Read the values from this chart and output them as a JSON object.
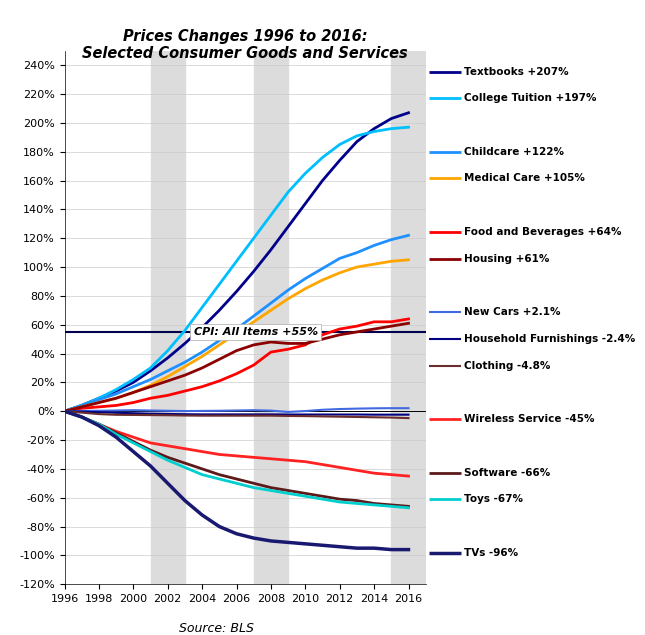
{
  "title": "Prices Changes 1996 to 2016:\nSelected Consumer Goods and Services",
  "source": "Source: BLS",
  "cpi_label": "CPI: All Items +55%",
  "xlim": [
    1996,
    2017
  ],
  "ylim": [
    -1.2,
    2.5
  ],
  "yticks": [
    -1.2,
    -1.0,
    -0.8,
    -0.6,
    -0.4,
    -0.2,
    0.0,
    0.2,
    0.4,
    0.6,
    0.8,
    1.0,
    1.2,
    1.4,
    1.6,
    1.8,
    2.0,
    2.2,
    2.4
  ],
  "ytick_labels": [
    "-120%",
    "-100%",
    "-80%",
    "-60%",
    "-40%",
    "-20%",
    "0%",
    "20%",
    "40%",
    "60%",
    "80%",
    "100%",
    "120%",
    "140%",
    "160%",
    "180%",
    "200%",
    "220%",
    "240%"
  ],
  "series": [
    {
      "name": "Textbooks +207%",
      "color": "#00008B",
      "lw": 2.0,
      "points": [
        [
          1996,
          0
        ],
        [
          1997,
          0.04
        ],
        [
          1998,
          0.09
        ],
        [
          1999,
          0.14
        ],
        [
          2000,
          0.2
        ],
        [
          2001,
          0.28
        ],
        [
          2002,
          0.37
        ],
        [
          2003,
          0.47
        ],
        [
          2004,
          0.58
        ],
        [
          2005,
          0.7
        ],
        [
          2006,
          0.83
        ],
        [
          2007,
          0.97
        ],
        [
          2008,
          1.12
        ],
        [
          2009,
          1.28
        ],
        [
          2010,
          1.44
        ],
        [
          2011,
          1.6
        ],
        [
          2012,
          1.74
        ],
        [
          2013,
          1.87
        ],
        [
          2014,
          1.96
        ],
        [
          2015,
          2.03
        ],
        [
          2016,
          2.07
        ]
      ]
    },
    {
      "name": "College Tuition +197%",
      "color": "#00BFFF",
      "lw": 2.0,
      "points": [
        [
          1996,
          0
        ],
        [
          1997,
          0.04
        ],
        [
          1998,
          0.09
        ],
        [
          1999,
          0.15
        ],
        [
          2000,
          0.22
        ],
        [
          2001,
          0.3
        ],
        [
          2002,
          0.42
        ],
        [
          2003,
          0.56
        ],
        [
          2004,
          0.72
        ],
        [
          2005,
          0.88
        ],
        [
          2006,
          1.04
        ],
        [
          2007,
          1.2
        ],
        [
          2008,
          1.36
        ],
        [
          2009,
          1.52
        ],
        [
          2010,
          1.65
        ],
        [
          2011,
          1.76
        ],
        [
          2012,
          1.85
        ],
        [
          2013,
          1.91
        ],
        [
          2014,
          1.94
        ],
        [
          2015,
          1.96
        ],
        [
          2016,
          1.97
        ]
      ]
    },
    {
      "name": "Childcare +122%",
      "color": "#1E90FF",
      "lw": 2.0,
      "points": [
        [
          1996,
          0
        ],
        [
          1997,
          0.04
        ],
        [
          1998,
          0.08
        ],
        [
          1999,
          0.12
        ],
        [
          2000,
          0.17
        ],
        [
          2001,
          0.22
        ],
        [
          2002,
          0.28
        ],
        [
          2003,
          0.34
        ],
        [
          2004,
          0.41
        ],
        [
          2005,
          0.49
        ],
        [
          2006,
          0.57
        ],
        [
          2007,
          0.66
        ],
        [
          2008,
          0.75
        ],
        [
          2009,
          0.84
        ],
        [
          2010,
          0.92
        ],
        [
          2011,
          0.99
        ],
        [
          2012,
          1.06
        ],
        [
          2013,
          1.1
        ],
        [
          2014,
          1.15
        ],
        [
          2015,
          1.19
        ],
        [
          2016,
          1.22
        ]
      ]
    },
    {
      "name": "Medical Care +105%",
      "color": "#FFA500",
      "lw": 2.0,
      "points": [
        [
          1996,
          0
        ],
        [
          1997,
          0.03
        ],
        [
          1998,
          0.06
        ],
        [
          1999,
          0.09
        ],
        [
          2000,
          0.13
        ],
        [
          2001,
          0.18
        ],
        [
          2002,
          0.24
        ],
        [
          2003,
          0.31
        ],
        [
          2004,
          0.38
        ],
        [
          2005,
          0.46
        ],
        [
          2006,
          0.54
        ],
        [
          2007,
          0.62
        ],
        [
          2008,
          0.7
        ],
        [
          2009,
          0.78
        ],
        [
          2010,
          0.85
        ],
        [
          2011,
          0.91
        ],
        [
          2012,
          0.96
        ],
        [
          2013,
          1.0
        ],
        [
          2014,
          1.02
        ],
        [
          2015,
          1.04
        ],
        [
          2016,
          1.05
        ]
      ]
    },
    {
      "name": "Food and Beverages +64%",
      "color": "#FF0000",
      "lw": 2.0,
      "points": [
        [
          1996,
          0
        ],
        [
          1997,
          0.02
        ],
        [
          1998,
          0.03
        ],
        [
          1999,
          0.04
        ],
        [
          2000,
          0.06
        ],
        [
          2001,
          0.09
        ],
        [
          2002,
          0.11
        ],
        [
          2003,
          0.14
        ],
        [
          2004,
          0.17
        ],
        [
          2005,
          0.21
        ],
        [
          2006,
          0.26
        ],
        [
          2007,
          0.32
        ],
        [
          2008,
          0.41
        ],
        [
          2009,
          0.43
        ],
        [
          2010,
          0.46
        ],
        [
          2011,
          0.53
        ],
        [
          2012,
          0.57
        ],
        [
          2013,
          0.59
        ],
        [
          2014,
          0.62
        ],
        [
          2015,
          0.62
        ],
        [
          2016,
          0.64
        ]
      ]
    },
    {
      "name": "Housing +61%",
      "color": "#8B0000",
      "lw": 2.0,
      "points": [
        [
          1996,
          0
        ],
        [
          1997,
          0.03
        ],
        [
          1998,
          0.06
        ],
        [
          1999,
          0.09
        ],
        [
          2000,
          0.13
        ],
        [
          2001,
          0.17
        ],
        [
          2002,
          0.21
        ],
        [
          2003,
          0.25
        ],
        [
          2004,
          0.3
        ],
        [
          2005,
          0.36
        ],
        [
          2006,
          0.42
        ],
        [
          2007,
          0.46
        ],
        [
          2008,
          0.48
        ],
        [
          2009,
          0.47
        ],
        [
          2010,
          0.47
        ],
        [
          2011,
          0.5
        ],
        [
          2012,
          0.53
        ],
        [
          2013,
          0.55
        ],
        [
          2014,
          0.57
        ],
        [
          2015,
          0.59
        ],
        [
          2016,
          0.61
        ]
      ]
    },
    {
      "name": "New Cars +2.1%",
      "color": "#4169E1",
      "lw": 1.5,
      "points": [
        [
          1996,
          0
        ],
        [
          1997,
          0.002
        ],
        [
          1998,
          0.003
        ],
        [
          1999,
          0.005
        ],
        [
          2000,
          0.007
        ],
        [
          2001,
          0.005
        ],
        [
          2002,
          0.003
        ],
        [
          2003,
          0.001
        ],
        [
          2004,
          0.002
        ],
        [
          2005,
          0.003
        ],
        [
          2006,
          0.005
        ],
        [
          2007,
          0.007
        ],
        [
          2008,
          0.004
        ],
        [
          2009,
          -0.005
        ],
        [
          2010,
          0.001
        ],
        [
          2011,
          0.01
        ],
        [
          2012,
          0.015
        ],
        [
          2013,
          0.018
        ],
        [
          2014,
          0.02
        ],
        [
          2015,
          0.021
        ],
        [
          2016,
          0.021
        ]
      ]
    },
    {
      "name": "Household Furnishings -2.4%",
      "color": "#000080",
      "lw": 1.5,
      "points": [
        [
          1996,
          0
        ],
        [
          1997,
          -0.003
        ],
        [
          1998,
          -0.007
        ],
        [
          1999,
          -0.011
        ],
        [
          2000,
          -0.014
        ],
        [
          2001,
          -0.017
        ],
        [
          2002,
          -0.019
        ],
        [
          2003,
          -0.021
        ],
        [
          2004,
          -0.022
        ],
        [
          2005,
          -0.022
        ],
        [
          2006,
          -0.022
        ],
        [
          2007,
          -0.022
        ],
        [
          2008,
          -0.022
        ],
        [
          2009,
          -0.023
        ],
        [
          2010,
          -0.023
        ],
        [
          2011,
          -0.023
        ],
        [
          2012,
          -0.023
        ],
        [
          2013,
          -0.023
        ],
        [
          2014,
          -0.024
        ],
        [
          2015,
          -0.024
        ],
        [
          2016,
          -0.024
        ]
      ]
    },
    {
      "name": "Clothing -4.8%",
      "color": "#6B2D2D",
      "lw": 1.5,
      "points": [
        [
          1996,
          0
        ],
        [
          1997,
          -0.01
        ],
        [
          1998,
          -0.02
        ],
        [
          1999,
          -0.025
        ],
        [
          2000,
          -0.026
        ],
        [
          2001,
          -0.027
        ],
        [
          2002,
          -0.028
        ],
        [
          2003,
          -0.03
        ],
        [
          2004,
          -0.031
        ],
        [
          2005,
          -0.031
        ],
        [
          2006,
          -0.031
        ],
        [
          2007,
          -0.031
        ],
        [
          2008,
          -0.031
        ],
        [
          2009,
          -0.033
        ],
        [
          2010,
          -0.034
        ],
        [
          2011,
          -0.036
        ],
        [
          2012,
          -0.038
        ],
        [
          2013,
          -0.04
        ],
        [
          2014,
          -0.042
        ],
        [
          2015,
          -0.044
        ],
        [
          2016,
          -0.048
        ]
      ]
    },
    {
      "name": "Wireless Service -45%",
      "color": "#FF2222",
      "lw": 2.0,
      "points": [
        [
          1996,
          0
        ],
        [
          1997,
          -0.04
        ],
        [
          1998,
          -0.09
        ],
        [
          1999,
          -0.14
        ],
        [
          2000,
          -0.18
        ],
        [
          2001,
          -0.22
        ],
        [
          2002,
          -0.24
        ],
        [
          2003,
          -0.26
        ],
        [
          2004,
          -0.28
        ],
        [
          2005,
          -0.3
        ],
        [
          2006,
          -0.31
        ],
        [
          2007,
          -0.32
        ],
        [
          2008,
          -0.33
        ],
        [
          2009,
          -0.34
        ],
        [
          2010,
          -0.35
        ],
        [
          2011,
          -0.37
        ],
        [
          2012,
          -0.39
        ],
        [
          2013,
          -0.41
        ],
        [
          2014,
          -0.43
        ],
        [
          2015,
          -0.44
        ],
        [
          2016,
          -0.45
        ]
      ]
    },
    {
      "name": "Software -66%",
      "color": "#5C1A1A",
      "lw": 2.0,
      "points": [
        [
          1996,
          0
        ],
        [
          1997,
          -0.04
        ],
        [
          1998,
          -0.09
        ],
        [
          1999,
          -0.15
        ],
        [
          2000,
          -0.21
        ],
        [
          2001,
          -0.27
        ],
        [
          2002,
          -0.32
        ],
        [
          2003,
          -0.36
        ],
        [
          2004,
          -0.4
        ],
        [
          2005,
          -0.44
        ],
        [
          2006,
          -0.47
        ],
        [
          2007,
          -0.5
        ],
        [
          2008,
          -0.53
        ],
        [
          2009,
          -0.55
        ],
        [
          2010,
          -0.57
        ],
        [
          2011,
          -0.59
        ],
        [
          2012,
          -0.61
        ],
        [
          2013,
          -0.62
        ],
        [
          2014,
          -0.64
        ],
        [
          2015,
          -0.65
        ],
        [
          2016,
          -0.66
        ]
      ]
    },
    {
      "name": "Toys -67%",
      "color": "#00CFCF",
      "lw": 2.0,
      "points": [
        [
          1996,
          0
        ],
        [
          1997,
          -0.04
        ],
        [
          1998,
          -0.09
        ],
        [
          1999,
          -0.16
        ],
        [
          2000,
          -0.22
        ],
        [
          2001,
          -0.28
        ],
        [
          2002,
          -0.34
        ],
        [
          2003,
          -0.39
        ],
        [
          2004,
          -0.44
        ],
        [
          2005,
          -0.47
        ],
        [
          2006,
          -0.5
        ],
        [
          2007,
          -0.53
        ],
        [
          2008,
          -0.55
        ],
        [
          2009,
          -0.57
        ],
        [
          2010,
          -0.59
        ],
        [
          2011,
          -0.61
        ],
        [
          2012,
          -0.63
        ],
        [
          2013,
          -0.64
        ],
        [
          2014,
          -0.65
        ],
        [
          2015,
          -0.66
        ],
        [
          2016,
          -0.67
        ]
      ]
    },
    {
      "name": "TVs -96%",
      "color": "#191970",
      "lw": 2.5,
      "points": [
        [
          1996,
          0
        ],
        [
          1997,
          -0.04
        ],
        [
          1998,
          -0.1
        ],
        [
          1999,
          -0.18
        ],
        [
          2000,
          -0.28
        ],
        [
          2001,
          -0.38
        ],
        [
          2002,
          -0.5
        ],
        [
          2003,
          -0.62
        ],
        [
          2004,
          -0.72
        ],
        [
          2005,
          -0.8
        ],
        [
          2006,
          -0.85
        ],
        [
          2007,
          -0.88
        ],
        [
          2008,
          -0.9
        ],
        [
          2009,
          -0.91
        ],
        [
          2010,
          -0.92
        ],
        [
          2011,
          -0.93
        ],
        [
          2012,
          -0.94
        ],
        [
          2013,
          -0.95
        ],
        [
          2014,
          -0.95
        ],
        [
          2015,
          -0.96
        ],
        [
          2016,
          -0.96
        ]
      ]
    }
  ],
  "legend_items": [
    {
      "name": "Textbooks +207%",
      "color": "#00008B",
      "lw": 2.0
    },
    {
      "name": "College Tuition +197%",
      "color": "#00BFFF",
      "lw": 2.0
    },
    {
      "name": "",
      "color": "none",
      "lw": 0
    },
    {
      "name": "Childcare +122%",
      "color": "#1E90FF",
      "lw": 2.0
    },
    {
      "name": "Medical Care +105%",
      "color": "#FFA500",
      "lw": 2.0
    },
    {
      "name": "",
      "color": "none",
      "lw": 0
    },
    {
      "name": "Food and Beverages +64%",
      "color": "#FF0000",
      "lw": 2.0
    },
    {
      "name": "Housing +61%",
      "color": "#8B0000",
      "lw": 2.0
    },
    {
      "name": "",
      "color": "none",
      "lw": 0
    },
    {
      "name": "New Cars +2.1%",
      "color": "#4169E1",
      "lw": 1.5
    },
    {
      "name": "Household Furnishings -2.4%",
      "color": "#000080",
      "lw": 1.5
    },
    {
      "name": "Clothing -4.8%",
      "color": "#6B2D2D",
      "lw": 1.5
    },
    {
      "name": "",
      "color": "none",
      "lw": 0
    },
    {
      "name": "Wireless Service -45%",
      "color": "#FF2222",
      "lw": 2.0
    },
    {
      "name": "",
      "color": "none",
      "lw": 0
    },
    {
      "name": "Software -66%",
      "color": "#5C1A1A",
      "lw": 2.0
    },
    {
      "name": "Toys -67%",
      "color": "#00CFCF",
      "lw": 2.0
    },
    {
      "name": "",
      "color": "none",
      "lw": 0
    },
    {
      "name": "TVs -96%",
      "color": "#191970",
      "lw": 2.5
    }
  ],
  "gray_band_ranges": [
    [
      2001,
      2003
    ],
    [
      2007,
      2009
    ],
    [
      2015,
      2017
    ]
  ],
  "background_color": "#FFFFFF",
  "cpi_line_color": "#00004C",
  "cpi_line_value": 0.55
}
